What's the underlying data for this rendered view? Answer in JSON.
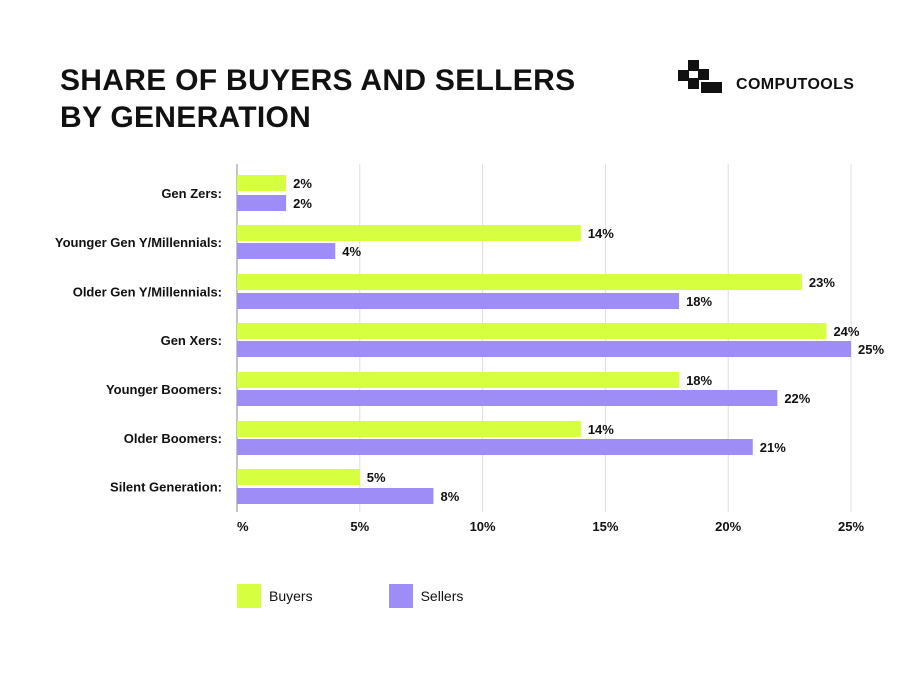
{
  "title_lines": [
    "SHARE OF BUYERS AND SELLERS",
    "BY GENERATION"
  ],
  "brand": {
    "name": "COMPUTOOLS",
    "icon": "computools-logo-icon"
  },
  "colors": {
    "buyers": "#d5ff3f",
    "sellers": "#9e8df6",
    "grid": "#dddddd",
    "axis": "#888888",
    "text": "#111111"
  },
  "chart_data": {
    "type": "bar",
    "orientation": "horizontal",
    "categories": [
      "Gen Zers:",
      "Younger Gen Y/Millennials:",
      "Older Gen Y/Millennials:",
      "Gen Xers:",
      "Younger Boomers:",
      "Older Boomers:",
      "Silent Generation:"
    ],
    "series": [
      {
        "name": "Buyers",
        "values": [
          2,
          14,
          23,
          24,
          18,
          14,
          5
        ],
        "labels": [
          "2%",
          "14%",
          "23%",
          "24%",
          "18%",
          "14%",
          "5%"
        ]
      },
      {
        "name": "Sellers",
        "values": [
          2,
          4,
          18,
          25,
          22,
          21,
          8
        ],
        "labels": [
          "2%",
          "4%",
          "18%",
          "25%",
          "22%",
          "21%",
          "8%"
        ]
      }
    ],
    "xlim": [
      0,
      25
    ],
    "xticks": [
      0,
      5,
      10,
      15,
      20,
      25
    ],
    "xtick_labels": [
      "%",
      "5%",
      "10%",
      "15%",
      "20%",
      "25%"
    ],
    "grid": true,
    "legend": "bottom-left"
  }
}
